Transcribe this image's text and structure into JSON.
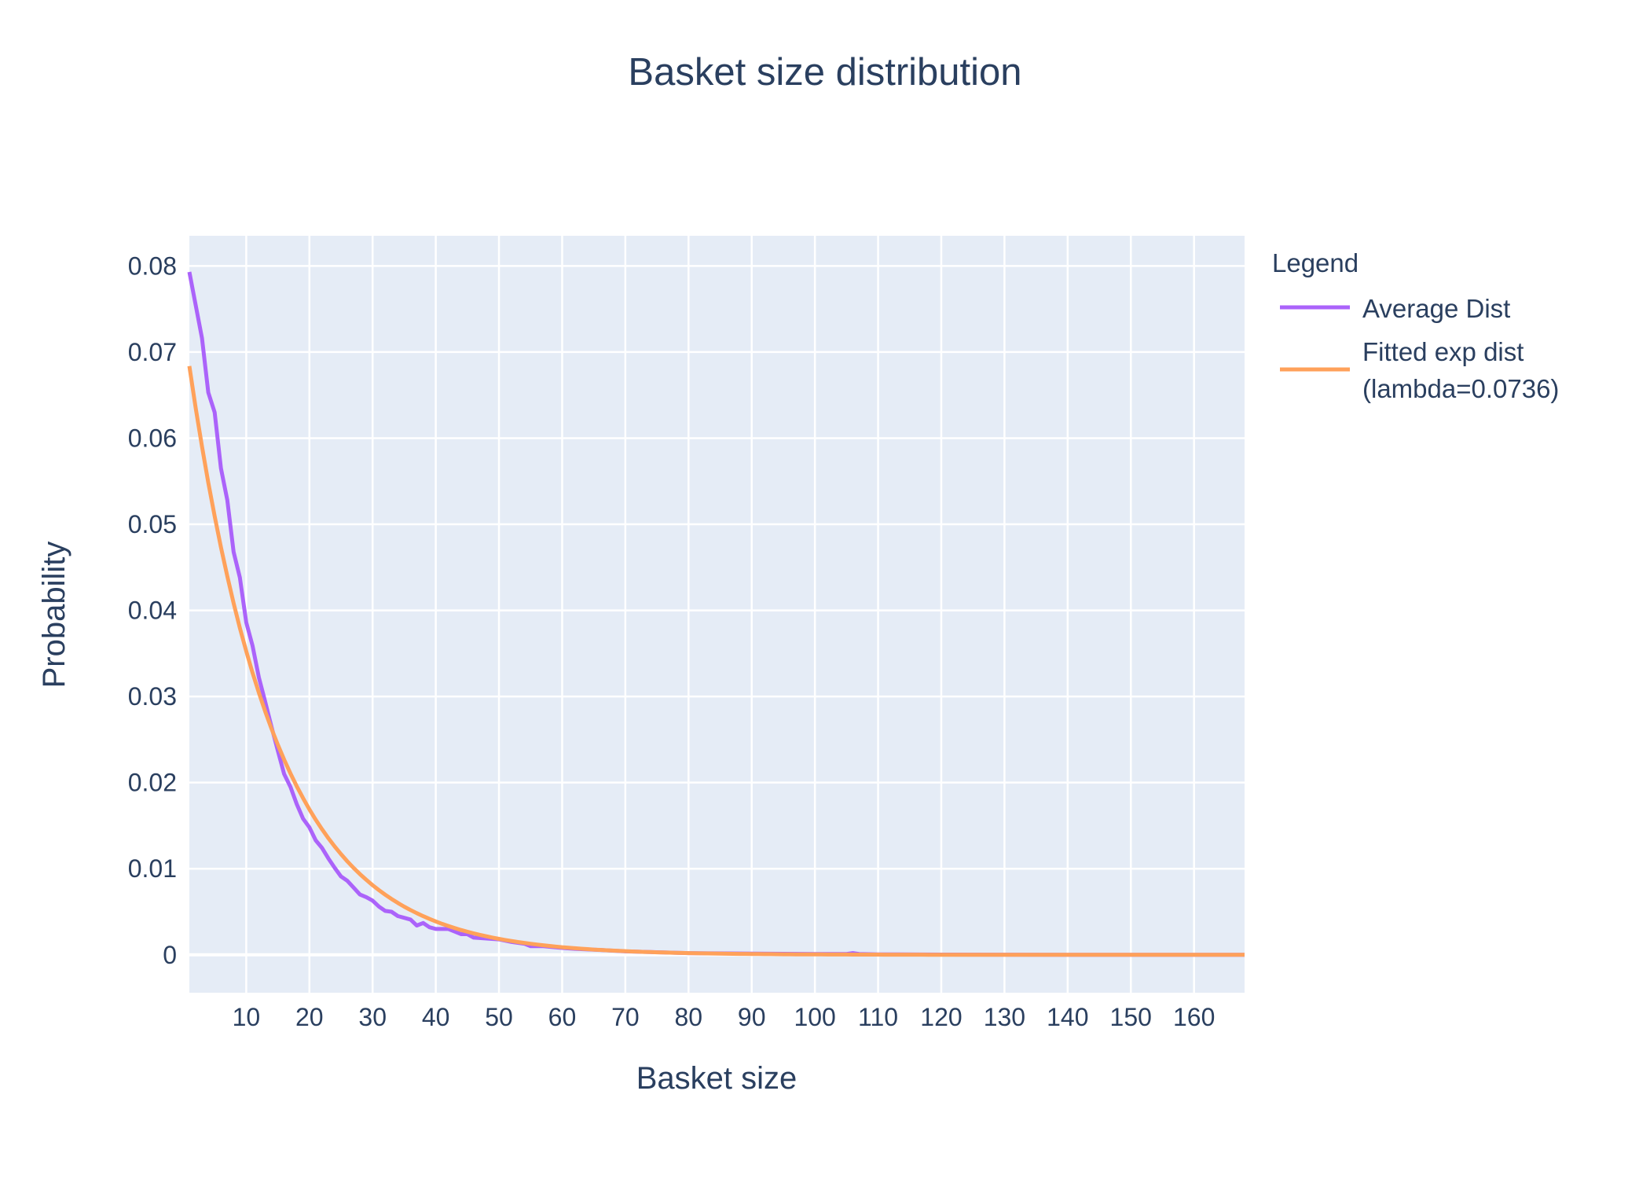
{
  "chart_data": {
    "type": "line",
    "title": "Basket size distribution",
    "xlabel": "Basket size",
    "ylabel": "Probability",
    "xlim": [
      1,
      168
    ],
    "ylim": [
      -0.0044,
      0.0835
    ],
    "xticks": [
      10,
      20,
      30,
      40,
      50,
      60,
      70,
      80,
      90,
      100,
      110,
      120,
      130,
      140,
      150,
      160
    ],
    "yticks": [
      0,
      0.01,
      0.02,
      0.03,
      0.04,
      0.05,
      0.06,
      0.07,
      0.08
    ],
    "ytick_labels": [
      "0",
      "0.01",
      "0.02",
      "0.03",
      "0.04",
      "0.05",
      "0.06",
      "0.07",
      "0.08"
    ],
    "grid": true,
    "plot_background": "#e5ecf6",
    "legend": {
      "title": "Legend",
      "placement": "right"
    },
    "series": [
      {
        "name": "Average Dist",
        "color": "#ab63fa",
        "points": [
          [
            1,
            0.0793
          ],
          [
            3,
            0.0716
          ],
          [
            4,
            0.0653
          ],
          [
            5,
            0.063
          ],
          [
            6,
            0.0565
          ],
          [
            7,
            0.0528
          ],
          [
            8,
            0.0468
          ],
          [
            9,
            0.0438
          ],
          [
            10,
            0.0386
          ],
          [
            11,
            0.0359
          ],
          [
            12,
            0.0322
          ],
          [
            13,
            0.0294
          ],
          [
            14,
            0.0265
          ],
          [
            15,
            0.0237
          ],
          [
            16,
            0.021
          ],
          [
            17,
            0.0195
          ],
          [
            18,
            0.0175
          ],
          [
            19,
            0.0158
          ],
          [
            20,
            0.0148
          ],
          [
            21,
            0.0133
          ],
          [
            22,
            0.0124
          ],
          [
            23,
            0.0112
          ],
          [
            24,
            0.0101
          ],
          [
            25,
            0.0091
          ],
          [
            26,
            0.0086
          ],
          [
            27,
            0.0078
          ],
          [
            28,
            0.007
          ],
          [
            29,
            0.0067
          ],
          [
            30,
            0.0063
          ],
          [
            31,
            0.0056
          ],
          [
            32,
            0.0051
          ],
          [
            33,
            0.005
          ],
          [
            34,
            0.0045
          ],
          [
            35,
            0.0043
          ],
          [
            36,
            0.0041
          ],
          [
            37,
            0.0034
          ],
          [
            38,
            0.0037
          ],
          [
            39,
            0.0032
          ],
          [
            40,
            0.003
          ],
          [
            42,
            0.003
          ],
          [
            43,
            0.0027
          ],
          [
            44,
            0.0024
          ],
          [
            45,
            0.0024
          ],
          [
            46,
            0.002
          ],
          [
            48,
            0.0019
          ],
          [
            50,
            0.0018
          ],
          [
            52,
            0.0015
          ],
          [
            54,
            0.0013
          ],
          [
            55,
            0.001
          ],
          [
            57,
            0.001
          ],
          [
            60,
            0.0008
          ],
          [
            62,
            0.0007
          ],
          [
            65,
            0.0006
          ],
          [
            70,
            0.0004
          ],
          [
            75,
            0.0003
          ],
          [
            80,
            0.0002
          ],
          [
            90,
            0.00015
          ],
          [
            100,
            0.0001
          ],
          [
            105,
            0.0001
          ],
          [
            106,
            0.0002
          ],
          [
            107,
            0.0001
          ],
          [
            110,
            5e-05
          ],
          [
            120,
            3e-05
          ],
          [
            130,
            2e-05
          ],
          [
            140,
            1e-05
          ],
          [
            150,
            1e-05
          ],
          [
            160,
            0.0
          ],
          [
            168,
            0.0
          ]
        ]
      },
      {
        "name": "Fitted exp dist",
        "name_line2": "(lambda=0.0736)",
        "color": "#ffa15a",
        "lambda": 0.0736
      }
    ]
  }
}
